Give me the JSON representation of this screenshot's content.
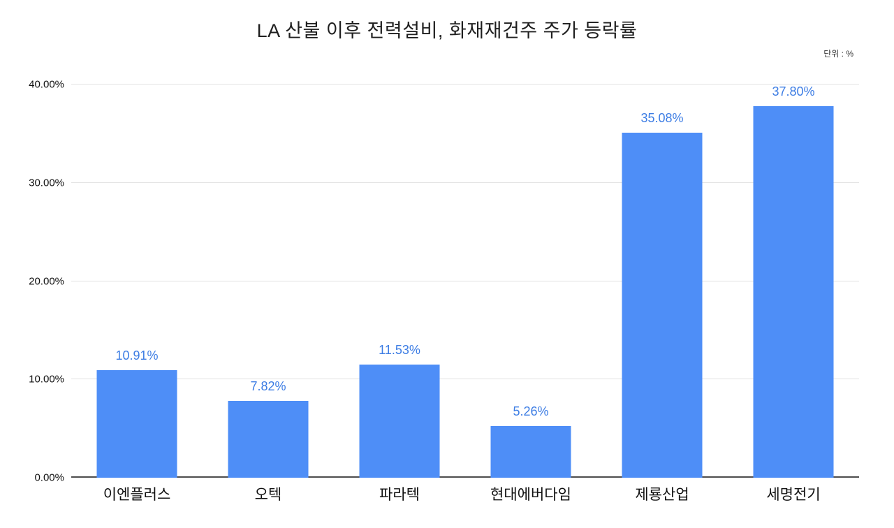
{
  "chart": {
    "title": "LA 산불 이후 전력설비, 화재재건주 주가 등락률",
    "unit_label": "단위 : %"
  },
  "chart_data": {
    "type": "bar",
    "title": "LA 산불 이후 전력설비, 화재재건주 주가 등락률",
    "xlabel": "",
    "ylabel": "단위 : %",
    "categories": [
      "이엔플러스",
      "오텍",
      "파라텍",
      "현대에버다임",
      "제룡산업",
      "세명전기"
    ],
    "values": [
      10.91,
      7.82,
      11.53,
      5.26,
      35.08,
      37.8
    ],
    "value_labels": [
      "10.91%",
      "7.82%",
      "11.53%",
      "5.26%",
      "35.08%",
      "37.80%"
    ],
    "ylim": [
      0,
      40
    ],
    "yticks": [
      0,
      10,
      20,
      30,
      40
    ],
    "ytick_labels": [
      "0.00%",
      "10.00%",
      "20.00%",
      "30.00%",
      "40.00%"
    ],
    "grid": true,
    "legend": "none",
    "bar_color": "#4e8ef7",
    "value_label_color": "#3d7de4"
  }
}
